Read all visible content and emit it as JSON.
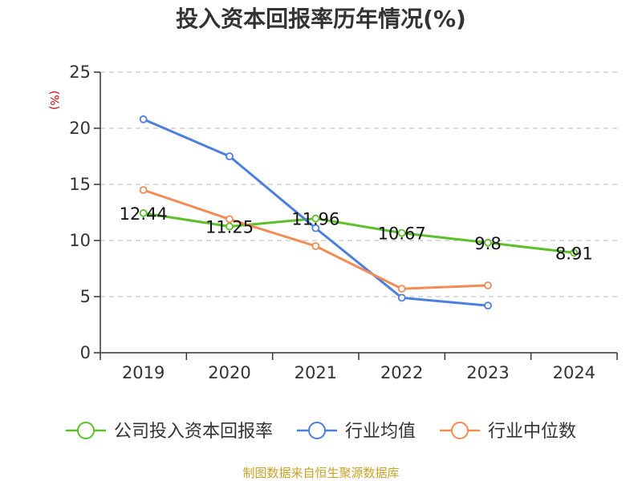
{
  "chart_data": {
    "type": "line",
    "title": "投入资本回报率历年情况(%)",
    "unit_label": "(%)",
    "categories": [
      "2019",
      "2020",
      "2021",
      "2022",
      "2023",
      "2024"
    ],
    "ylim": [
      0,
      25
    ],
    "yticks": [
      0,
      5,
      10,
      15,
      20,
      25
    ],
    "grid": true,
    "legend_position": "bottom",
    "series": [
      {
        "name": "公司投入资本回报率",
        "color": "#5cc02a",
        "values": [
          12.44,
          11.25,
          11.96,
          10.67,
          9.8,
          8.91
        ],
        "labels": [
          "12.44",
          "11.25",
          "11.96",
          "10.67",
          "9.8",
          "8.91"
        ]
      },
      {
        "name": "行业均值",
        "color": "#4a7fde",
        "values": [
          20.8,
          17.5,
          11.1,
          4.9,
          4.2,
          null
        ]
      },
      {
        "name": "行业中位数",
        "color": "#f28b54",
        "values": [
          14.5,
          11.9,
          9.5,
          5.7,
          6.0,
          null
        ]
      }
    ],
    "source": "制图数据来自恒生聚源数据库"
  }
}
